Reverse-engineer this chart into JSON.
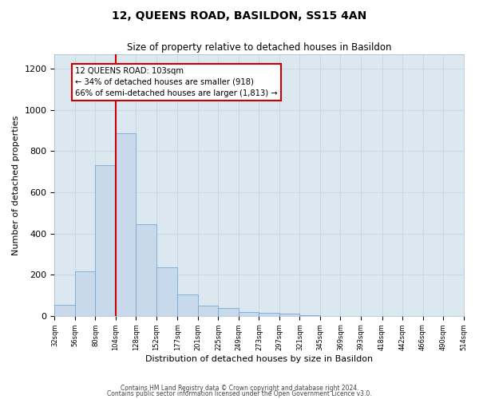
{
  "title": "12, QUEENS ROAD, BASILDON, SS15 4AN",
  "subtitle": "Size of property relative to detached houses in Basildon",
  "xlabel": "Distribution of detached houses by size in Basildon",
  "ylabel": "Number of detached properties",
  "bar_values": [
    55,
    215,
    730,
    885,
    445,
    235,
    105,
    50,
    40,
    20,
    15,
    10,
    5,
    0,
    0,
    0,
    0,
    0,
    0,
    0
  ],
  "bin_edges": [
    32,
    56,
    80,
    104,
    128,
    152,
    177,
    201,
    225,
    249,
    273,
    297,
    321,
    345,
    369,
    393,
    418,
    442,
    466,
    490,
    514
  ],
  "tick_labels": [
    "32sqm",
    "56sqm",
    "80sqm",
    "104sqm",
    "128sqm",
    "152sqm",
    "177sqm",
    "201sqm",
    "225sqm",
    "249sqm",
    "273sqm",
    "297sqm",
    "321sqm",
    "345sqm",
    "369sqm",
    "393sqm",
    "418sqm",
    "442sqm",
    "466sqm",
    "490sqm",
    "514sqm"
  ],
  "bar_fill": "#c9d9ec",
  "bar_edge": "#7aaad0",
  "vline_x": 104,
  "vline_color": "#cc0000",
  "annotation_box_edge": "#cc0000",
  "annotation_title": "12 QUEENS ROAD: 103sqm",
  "annotation_line1": "← 34% of detached houses are smaller (918)",
  "annotation_line2": "66% of semi-detached houses are larger (1,813) →",
  "ylim": [
    0,
    1270
  ],
  "yticks": [
    0,
    200,
    400,
    600,
    800,
    1000,
    1200
  ],
  "grid_color": "#c8d8e8",
  "bg_color": "#dce8f0",
  "footer1": "Contains HM Land Registry data © Crown copyright and database right 2024.",
  "footer2": "Contains public sector information licensed under the Open Government Licence v3.0."
}
